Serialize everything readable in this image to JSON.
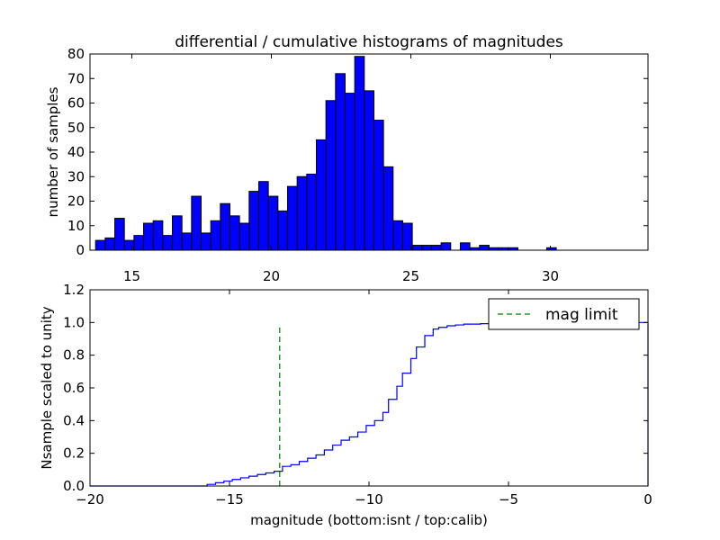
{
  "chart_data": [
    {
      "type": "bar",
      "title": "differential / cumulative histograms of magnitudes",
      "xlabel": "",
      "ylabel": "number of samples",
      "xlim": [
        13.5,
        33.5
      ],
      "ylim": [
        0,
        80
      ],
      "grid": false,
      "bar_color": "#0000ff",
      "xticks": [
        "15",
        "20",
        "25",
        "30"
      ],
      "yticks": [
        "0",
        "10",
        "20",
        "30",
        "40",
        "50",
        "60",
        "70",
        "80"
      ],
      "bin_start": 13.7,
      "bin_width": 0.344,
      "values": [
        4,
        5,
        13,
        4,
        6,
        11,
        12,
        6,
        14,
        7,
        22,
        7,
        12,
        19,
        14,
        11,
        24,
        28,
        22,
        16,
        26,
        30,
        31,
        45,
        61,
        72,
        64,
        79,
        65,
        53,
        34,
        12,
        11,
        2,
        2,
        2,
        3,
        0,
        3,
        1,
        2,
        1,
        1,
        1,
        0,
        0,
        0,
        1,
        0,
        0,
        0,
        0,
        0,
        0,
        0,
        0
      ]
    },
    {
      "type": "line",
      "title": "",
      "xlabel": "magnitude (bottom:isnt / top:calib)",
      "ylabel": "Nsample scaled to unity",
      "xlim": [
        -20,
        0
      ],
      "ylim": [
        0,
        1.2
      ],
      "grid": false,
      "xticks": [
        "−20",
        "−15",
        "−10",
        "−5",
        "0"
      ],
      "yticks": [
        "0.0",
        "0.2",
        "0.4",
        "0.6",
        "0.8",
        "1.0",
        "1.2"
      ],
      "series": [
        {
          "name": "cumulative",
          "color": "#0000ff",
          "style": "steps-post",
          "x": [
            -20,
            -15.8,
            -15.5,
            -15.2,
            -14.9,
            -14.6,
            -14.3,
            -14.0,
            -13.7,
            -13.4,
            -13.1,
            -12.8,
            -12.5,
            -12.2,
            -11.9,
            -11.6,
            -11.3,
            -11.0,
            -10.7,
            -10.4,
            -10.1,
            -9.8,
            -9.5,
            -9.3,
            -9.0,
            -8.8,
            -8.5,
            -8.3,
            -8.0,
            -7.7,
            -7.5,
            -7.2,
            -6.9,
            -6.6,
            -6.3,
            -6.0,
            -5.7,
            -5.4,
            -5.1,
            -4.8,
            -4.5,
            -4.2,
            -3.9,
            -0.05,
            0
          ],
          "y": [
            0.0,
            0.01,
            0.02,
            0.03,
            0.04,
            0.05,
            0.06,
            0.07,
            0.08,
            0.09,
            0.12,
            0.13,
            0.15,
            0.17,
            0.19,
            0.22,
            0.25,
            0.28,
            0.3,
            0.33,
            0.37,
            0.4,
            0.45,
            0.53,
            0.61,
            0.69,
            0.78,
            0.85,
            0.92,
            0.96,
            0.97,
            0.98,
            0.985,
            0.99,
            0.99,
            0.993,
            0.995,
            0.996,
            0.997,
            0.998,
            0.999,
            0.999,
            1.0,
            1.0,
            0.0
          ]
        },
        {
          "name": "mag limit",
          "color": "#008000",
          "style": "dashed",
          "x": [
            -13.2,
            -13.2
          ],
          "y": [
            0.0,
            0.97
          ]
        }
      ],
      "legend": {
        "entries": [
          "mag limit"
        ],
        "position": "top-right"
      }
    }
  ]
}
